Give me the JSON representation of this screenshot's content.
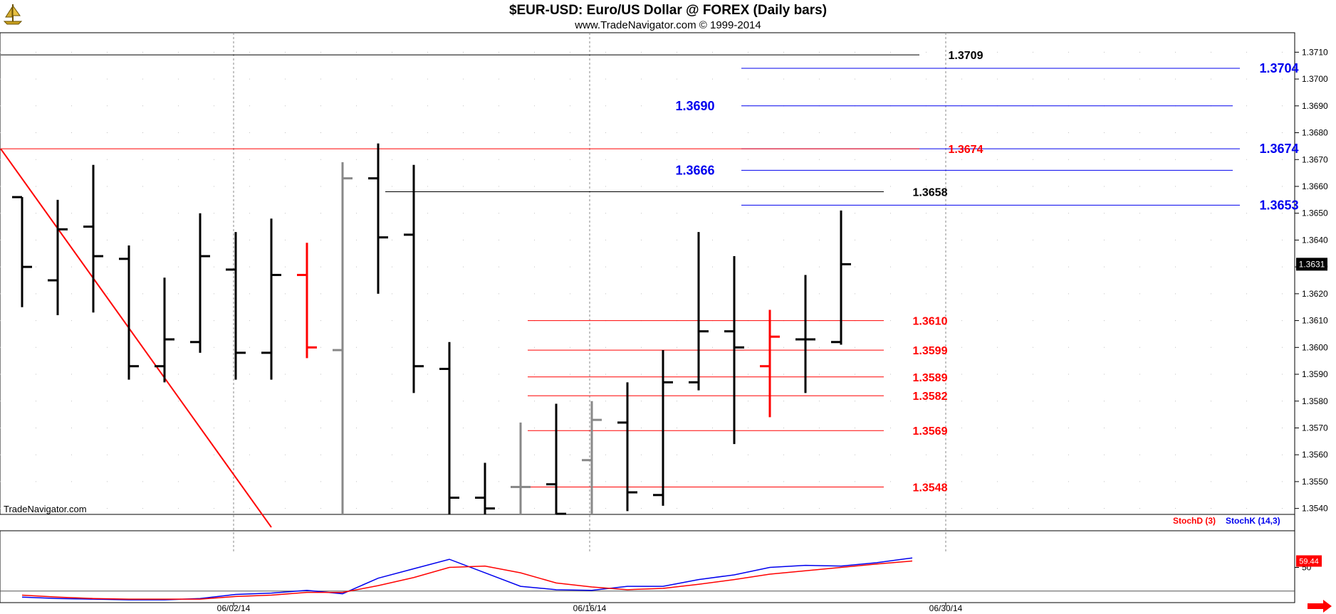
{
  "header": {
    "title": "$EUR-USD:  Euro/US Dollar @ FOREX  (Daily bars)",
    "subtitle": "www.TradeNavigator.com © 1999-2014",
    "watermark": "TradeNavigator.com"
  },
  "chart_data": {
    "type": "ohlc",
    "y_axis": {
      "min": 1.3535,
      "max": 1.3715,
      "ticks": [
        "1.3540",
        "1.3550",
        "1.3560",
        "1.3570",
        "1.3580",
        "1.3590",
        "1.3600",
        "1.3610",
        "1.3620",
        "1.3630",
        "1.3640",
        "1.3650",
        "1.3660",
        "1.3670",
        "1.3680",
        "1.3690",
        "1.3700",
        "1.3710"
      ],
      "last_price": "1.3631"
    },
    "x_axis": {
      "date_labels": [
        {
          "label": "06/02/14",
          "bar": 6
        },
        {
          "label": "06/16/14",
          "bar": 16
        },
        {
          "label": "06/30/14",
          "bar": 26
        }
      ]
    },
    "bars": [
      {
        "o": 1.3656,
        "h": 1.3656,
        "l": 1.3615,
        "c": 1.363,
        "color": "black"
      },
      {
        "o": 1.3625,
        "h": 1.3655,
        "l": 1.3612,
        "c": 1.3644,
        "color": "black"
      },
      {
        "o": 1.3645,
        "h": 1.3668,
        "l": 1.3613,
        "c": 1.3634,
        "color": "black"
      },
      {
        "o": 1.3633,
        "h": 1.3638,
        "l": 1.3588,
        "c": 1.3593,
        "color": "black"
      },
      {
        "o": 1.3593,
        "h": 1.3626,
        "l": 1.3587,
        "c": 1.3603,
        "color": "black"
      },
      {
        "o": 1.3602,
        "h": 1.365,
        "l": 1.3598,
        "c": 1.3634,
        "color": "black"
      },
      {
        "o": 1.3629,
        "h": 1.3643,
        "l": 1.3588,
        "c": 1.3598,
        "color": "black"
      },
      {
        "o": 1.3598,
        "h": 1.3648,
        "l": 1.3588,
        "c": 1.3627,
        "color": "black"
      },
      {
        "o": 1.3627,
        "h": 1.3639,
        "l": 1.3596,
        "c": 1.36,
        "color": "red"
      },
      {
        "o": 1.3599,
        "h": 1.3669,
        "l": 1.352,
        "c": 1.3663,
        "color": "gray"
      },
      {
        "o": 1.3663,
        "h": 1.3676,
        "l": 1.362,
        "c": 1.3641,
        "color": "black"
      },
      {
        "o": 1.3642,
        "h": 1.3668,
        "l": 1.3583,
        "c": 1.3593,
        "color": "black"
      },
      {
        "o": 1.3592,
        "h": 1.3602,
        "l": 1.353,
        "c": 1.3544,
        "color": "black"
      },
      {
        "o": 1.3544,
        "h": 1.3557,
        "l": 1.353,
        "c": 1.354,
        "color": "black"
      },
      {
        "o": 1.3548,
        "h": 1.3572,
        "l": 1.3525,
        "c": 1.3548,
        "color": "gray"
      },
      {
        "o": 1.3549,
        "h": 1.3579,
        "l": 1.353,
        "c": 1.3538,
        "color": "black"
      },
      {
        "o": 1.3558,
        "h": 1.358,
        "l": 1.353,
        "c": 1.3573,
        "color": "gray"
      },
      {
        "o": 1.3572,
        "h": 1.3587,
        "l": 1.3539,
        "c": 1.3546,
        "color": "black"
      },
      {
        "o": 1.3545,
        "h": 1.3599,
        "l": 1.3541,
        "c": 1.3587,
        "color": "black"
      },
      {
        "o": 1.3587,
        "h": 1.3643,
        "l": 1.3584,
        "c": 1.3606,
        "color": "black"
      },
      {
        "o": 1.3606,
        "h": 1.3634,
        "l": 1.3564,
        "c": 1.36,
        "color": "black"
      },
      {
        "o": 1.3593,
        "h": 1.3614,
        "l": 1.3574,
        "c": 1.3604,
        "color": "red"
      },
      {
        "o": 1.3603,
        "h": 1.3627,
        "l": 1.3583,
        "c": 1.3603,
        "color": "black"
      },
      {
        "o": 1.3602,
        "h": 1.3651,
        "l": 1.3601,
        "c": 1.3631,
        "color": "black"
      }
    ],
    "levels": [
      {
        "label": "1.3709",
        "value": 1.3709,
        "color": "#000000",
        "x1_bar": -0.6,
        "x2_bar": 25.2,
        "label_bar": 26.5,
        "size": 16
      },
      {
        "label": "1.3704",
        "value": 1.3704,
        "color": "#0000ee",
        "x1_bar": 20.2,
        "x2_bar": 34.2,
        "label_bar": 35.3,
        "size": 18
      },
      {
        "label": "1.3690",
        "value": 1.369,
        "color": "#0000ee",
        "x1_bar": 20.2,
        "x2_bar": 34.0,
        "label_bar": 18.9,
        "size": 18
      },
      {
        "label": "1.3674",
        "value": 1.3674,
        "color": "#0000ee",
        "x1_bar": 20.2,
        "x2_bar": 34.2,
        "label_bar": 35.3,
        "size": 18
      },
      {
        "label": "1.3674",
        "value": 1.3674,
        "color": "#ff0000",
        "x1_bar": -0.6,
        "x2_bar": 25.2,
        "label_bar": 26.5,
        "size": 16
      },
      {
        "label": "1.3666",
        "value": 1.3666,
        "color": "#0000ee",
        "x1_bar": 20.2,
        "x2_bar": 34.0,
        "label_bar": 18.9,
        "size": 18
      },
      {
        "label": "1.3658",
        "value": 1.3658,
        "color": "#000000",
        "x1_bar": 10.2,
        "x2_bar": 24.2,
        "label_bar": 25.5,
        "size": 16
      },
      {
        "label": "1.3653",
        "value": 1.3653,
        "color": "#0000ee",
        "x1_bar": 20.2,
        "x2_bar": 34.2,
        "label_bar": 35.3,
        "size": 18
      },
      {
        "label": "1.3610",
        "value": 1.361,
        "color": "#ff0000",
        "x1_bar": 14.2,
        "x2_bar": 24.2,
        "label_bar": 25.5,
        "size": 16
      },
      {
        "label": "1.3599",
        "value": 1.3599,
        "color": "#ff0000",
        "x1_bar": 14.2,
        "x2_bar": 24.2,
        "label_bar": 25.5,
        "size": 16
      },
      {
        "label": "1.3589",
        "value": 1.3589,
        "color": "#ff0000",
        "x1_bar": 14.2,
        "x2_bar": 24.2,
        "label_bar": 25.5,
        "size": 16
      },
      {
        "label": "1.3582",
        "value": 1.3582,
        "color": "#ff0000",
        "x1_bar": 14.2,
        "x2_bar": 24.2,
        "label_bar": 25.5,
        "size": 16
      },
      {
        "label": "1.3569",
        "value": 1.3569,
        "color": "#ff0000",
        "x1_bar": 14.2,
        "x2_bar": 24.2,
        "label_bar": 25.5,
        "size": 16
      },
      {
        "label": "1.3548",
        "value": 1.3548,
        "color": "#ff0000",
        "x1_bar": 14.2,
        "x2_bar": 24.2,
        "label_bar": 25.5,
        "size": 16
      }
    ],
    "trendline": {
      "color": "#ff0000",
      "p1": {
        "bar": -0.6,
        "value": 1.3674
      },
      "p2": {
        "bar": 7.0,
        "value": 1.3533
      }
    },
    "stochastic": {
      "legend": [
        {
          "label": "StochD (3)",
          "color": "#ff0000"
        },
        {
          "label": "StochK (14,3)",
          "color": "#0000ee"
        }
      ],
      "axis_label": "50",
      "last_value": "59.44",
      "stochK": [
        6,
        4,
        3,
        2,
        2,
        4,
        10,
        12,
        16,
        11,
        34,
        48,
        62,
        42,
        22,
        17,
        16,
        22,
        22,
        32,
        39,
        50,
        53,
        52,
        57,
        64
      ],
      "stochD": [
        9,
        6,
        4,
        3,
        3,
        3,
        7,
        9,
        13,
        13,
        23,
        35,
        50,
        52,
        42,
        27,
        21,
        17,
        19,
        25,
        32,
        40,
        45,
        50,
        55,
        59.44
      ]
    }
  }
}
